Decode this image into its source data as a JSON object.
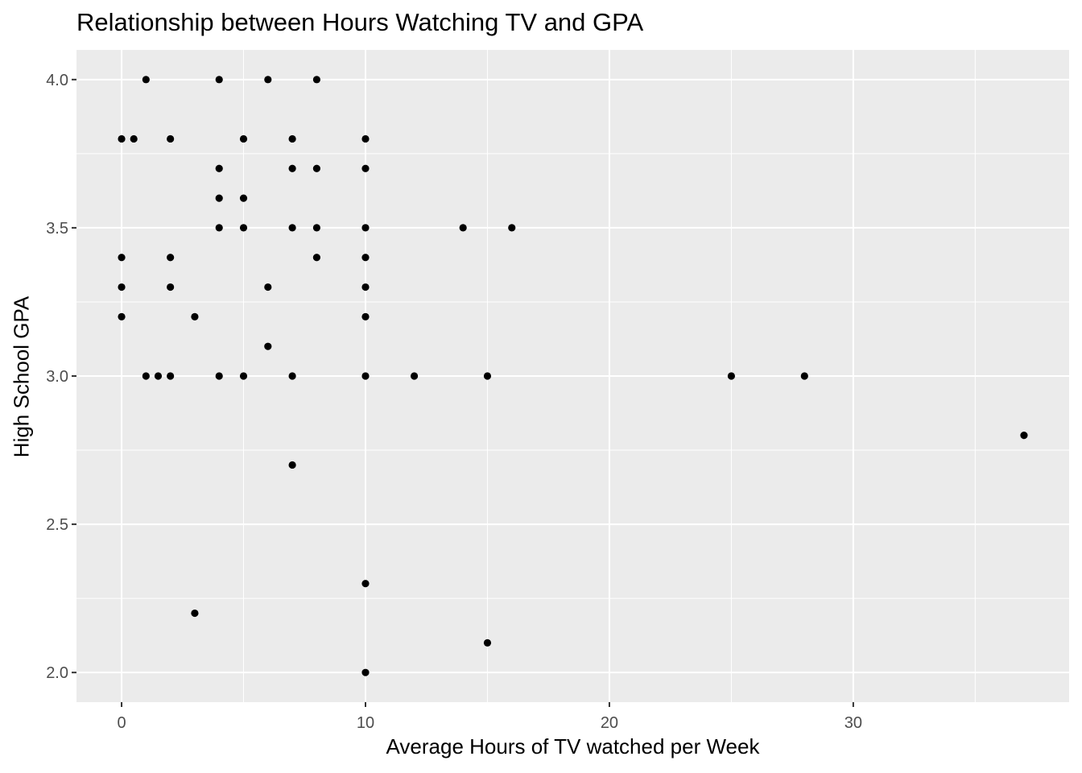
{
  "chart_data": {
    "type": "scatter",
    "title": "Relationship between Hours Watching TV and GPA",
    "xlabel": "Average Hours of TV watched per Week",
    "ylabel": "High School GPA",
    "xlim": [
      -1.85,
      38.85
    ],
    "ylim": [
      1.9,
      4.1
    ],
    "x_ticks": [
      0,
      10,
      20,
      30
    ],
    "x_minor_ticks": [
      5,
      15,
      25,
      35
    ],
    "y_ticks": [
      2.0,
      2.5,
      3.0,
      3.5,
      4.0
    ],
    "y_minor_ticks": [
      2.25,
      2.75,
      3.25,
      3.75
    ],
    "x_tick_labels": [
      "0",
      "10",
      "20",
      "30"
    ],
    "y_tick_labels": [
      "2.0",
      "2.5",
      "3.0",
      "3.5",
      "4.0"
    ],
    "grid": true,
    "legend": "none",
    "colors": {
      "panel": "#ebebeb",
      "grid": "#ffffff",
      "point": "#000000",
      "tick_text": "#4d4d4d"
    },
    "points": [
      [
        1,
        4.0
      ],
      [
        4,
        4.0
      ],
      [
        6,
        4.0
      ],
      [
        8,
        4.0
      ],
      [
        0,
        3.8
      ],
      [
        0.5,
        3.8
      ],
      [
        2,
        3.8
      ],
      [
        5,
        3.8
      ],
      [
        7,
        3.8
      ],
      [
        10,
        3.8
      ],
      [
        4,
        3.7
      ],
      [
        7,
        3.7
      ],
      [
        8,
        3.7
      ],
      [
        10,
        3.7
      ],
      [
        4,
        3.6
      ],
      [
        5,
        3.6
      ],
      [
        4,
        3.5
      ],
      [
        5,
        3.5
      ],
      [
        7,
        3.5
      ],
      [
        8,
        3.5
      ],
      [
        10,
        3.5
      ],
      [
        14,
        3.5
      ],
      [
        16,
        3.5
      ],
      [
        0,
        3.4
      ],
      [
        2,
        3.4
      ],
      [
        8,
        3.4
      ],
      [
        10,
        3.4
      ],
      [
        0,
        3.3
      ],
      [
        2,
        3.3
      ],
      [
        6,
        3.3
      ],
      [
        10,
        3.3
      ],
      [
        0,
        3.2
      ],
      [
        3,
        3.2
      ],
      [
        10,
        3.2
      ],
      [
        6,
        3.1
      ],
      [
        1,
        3.0
      ],
      [
        1.5,
        3.0
      ],
      [
        2,
        3.0
      ],
      [
        4,
        3.0
      ],
      [
        5,
        3.0
      ],
      [
        7,
        3.0
      ],
      [
        10,
        3.0
      ],
      [
        12,
        3.0
      ],
      [
        15,
        3.0
      ],
      [
        25,
        3.0
      ],
      [
        28,
        3.0
      ],
      [
        37,
        2.8
      ],
      [
        7,
        2.7
      ],
      [
        10,
        2.3
      ],
      [
        3,
        2.2
      ],
      [
        15,
        2.1
      ],
      [
        10,
        2.0
      ]
    ]
  }
}
